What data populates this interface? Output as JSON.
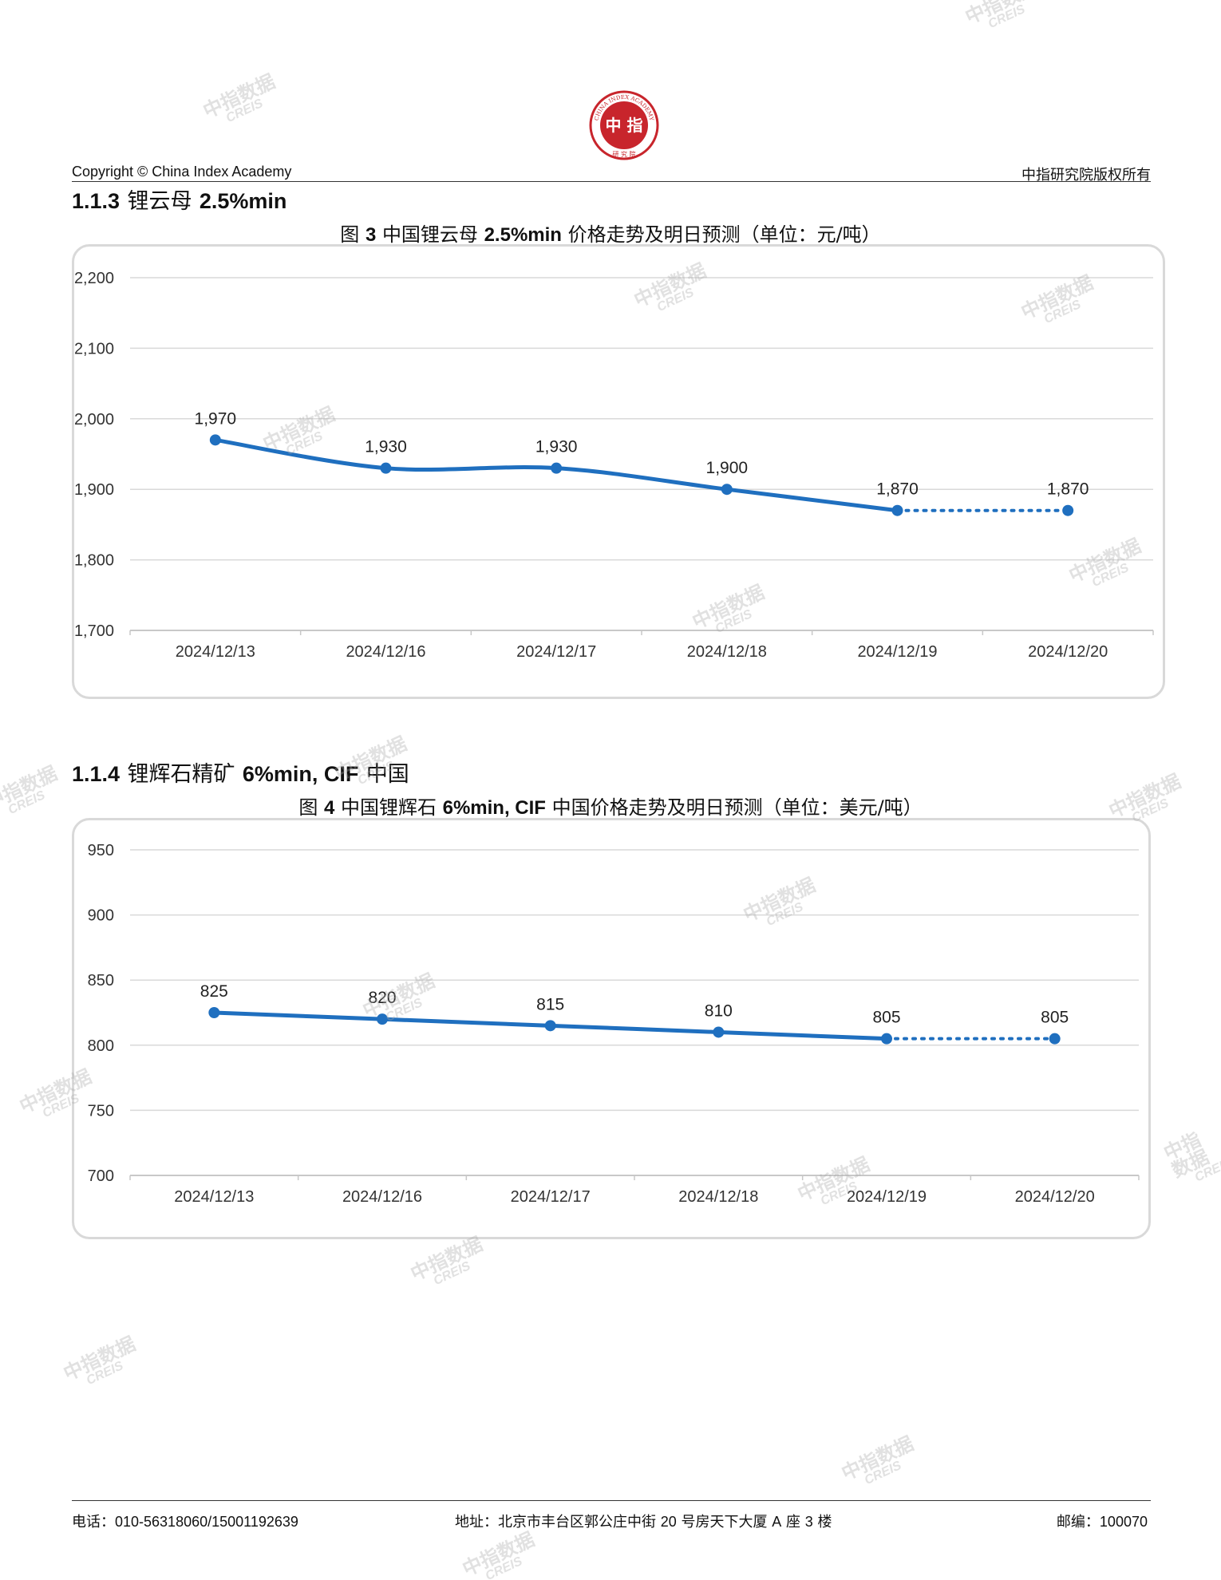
{
  "header": {
    "left": "Copyright © China Index Academy",
    "right": "中指研究院版权所有",
    "logo": {
      "outer_text": "CHINA INDEX ACADEMY",
      "center_text": "中 指",
      "bottom_text": "研 究 院",
      "color": "#c8252c"
    }
  },
  "sections": [
    {
      "num": "1.1.3",
      "text_zh": "锂云母",
      "text_b": "2.5%min"
    },
    {
      "num": "1.1.4",
      "text_zh": "锂辉石精矿",
      "text_b": "6%min, CIF",
      "text_zh2": "中国"
    }
  ],
  "chart_titles": [
    {
      "pre": "图",
      "num": "3",
      "mid": "中国锂云母",
      "b": "2.5%min",
      "post": "价格走势及明日预测（单位：元/吨）"
    },
    {
      "pre": "图",
      "num": "4",
      "mid": "中国锂辉石",
      "b": "6%min, CIF",
      "post": "中国价格走势及明日预测（单位：美元/吨）"
    }
  ],
  "chart_data": [
    {
      "type": "line",
      "categories": [
        "2024/12/13",
        "2024/12/16",
        "2024/12/17",
        "2024/12/18",
        "2024/12/19",
        "2024/12/20"
      ],
      "values": [
        1970,
        1930,
        1930,
        1900,
        1870,
        1870
      ],
      "value_labels": [
        "1,970",
        "1,930",
        "1,930",
        "1,900",
        "1,870",
        "1,870"
      ],
      "yticks": [
        "1,700",
        "1,800",
        "1,900",
        "2,000",
        "2,100",
        "2,200"
      ],
      "ylim": [
        1700,
        2200
      ],
      "forecast_from_index": 4,
      "grid": true,
      "color": "#1f6fbf",
      "title": "图 3 中国锂云母 2.5%min 价格走势及明日预测（单位：元/吨）"
    },
    {
      "type": "line",
      "categories": [
        "2024/12/13",
        "2024/12/16",
        "2024/12/17",
        "2024/12/18",
        "2024/12/19",
        "2024/12/20"
      ],
      "values": [
        825,
        820,
        815,
        810,
        805,
        805
      ],
      "value_labels": [
        "825",
        "820",
        "815",
        "810",
        "805",
        "805"
      ],
      "yticks": [
        "700",
        "750",
        "800",
        "850",
        "900",
        "950"
      ],
      "ylim": [
        700,
        950
      ],
      "forecast_from_index": 4,
      "grid": true,
      "color": "#1f6fbf",
      "title": "图 4 中国锂辉石 6%min, CIF 中国价格走势及明日预测（单位：美元/吨）"
    }
  ],
  "footer": {
    "phone_label": "电话：",
    "phone": "010-56318060/15001192639",
    "addr_label": "地址：",
    "addr_a": "北京市丰台区郭公庄中街",
    "addr_num": "20",
    "addr_b": "号房天下大厦",
    "addr_c": "A",
    "addr_d": "座",
    "addr_e": "3",
    "addr_f": "楼",
    "zip_label": "邮编：",
    "zip": "100070"
  },
  "watermark": {
    "line1": "中指数据",
    "line2": "CREIS"
  }
}
